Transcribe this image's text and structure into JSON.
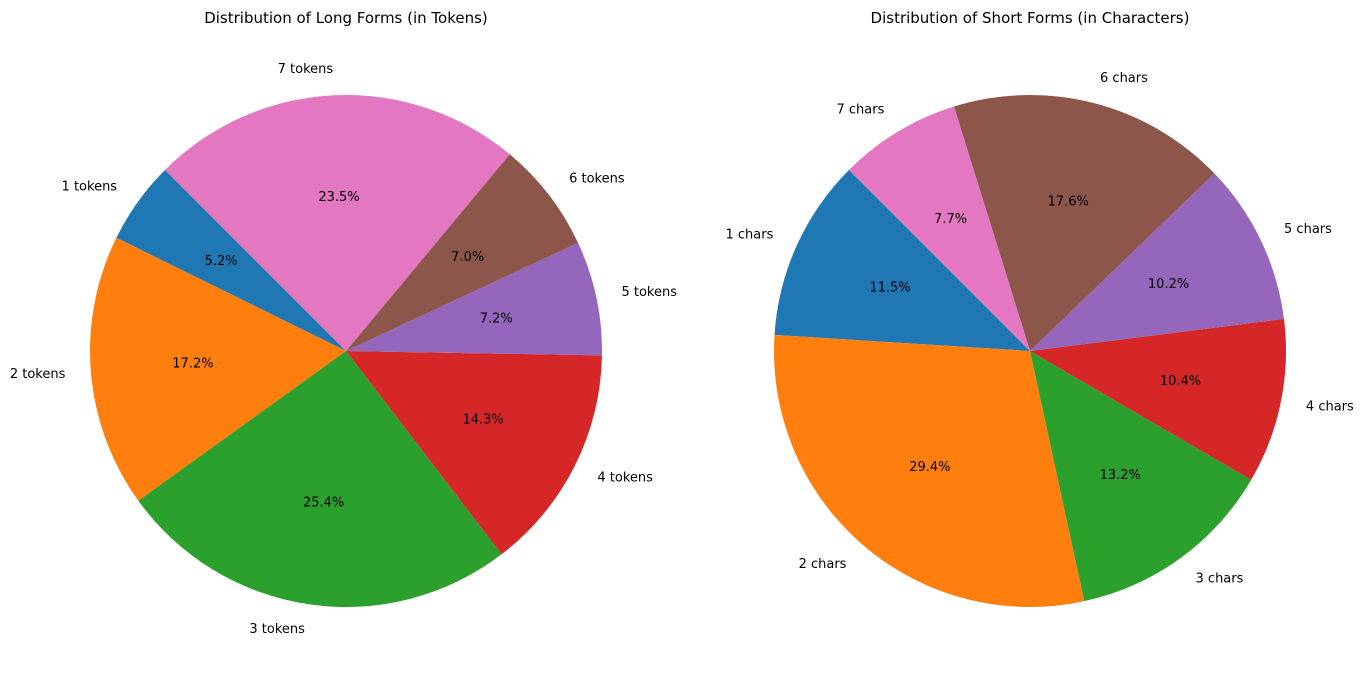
{
  "chart_data": [
    {
      "type": "pie",
      "title": "Distribution of Long Forms (in Tokens)",
      "start_angle_deg": 135,
      "direction": "counterclockwise",
      "categories": [
        "1 tokens",
        "2 tokens",
        "3 tokens",
        "4 tokens",
        "5 tokens",
        "6 tokens",
        "7 tokens"
      ],
      "values": [
        5.2,
        17.2,
        25.4,
        14.3,
        7.2,
        7.0,
        23.5
      ],
      "value_labels": [
        "5.2%",
        "17.2%",
        "25.4%",
        "14.3%",
        "7.2%",
        "7.0%",
        "23.5%"
      ],
      "colors": [
        "#1f77b4",
        "#ff7f0e",
        "#2ca02c",
        "#d62728",
        "#9467bd",
        "#8c564b",
        "#e377c2"
      ]
    },
    {
      "type": "pie",
      "title": "Distribution of Short Forms (in Characters)",
      "start_angle_deg": 135,
      "direction": "counterclockwise",
      "categories": [
        "1 chars",
        "2 chars",
        "3 chars",
        "4 chars",
        "5 chars",
        "6 chars",
        "7 chars"
      ],
      "values": [
        11.5,
        29.4,
        13.2,
        10.4,
        10.2,
        17.6,
        7.7
      ],
      "value_labels": [
        "11.5%",
        "29.4%",
        "13.2%",
        "10.4%",
        "10.2%",
        "17.6%",
        "7.7%"
      ],
      "colors": [
        "#1f77b4",
        "#ff7f0e",
        "#2ca02c",
        "#d62728",
        "#9467bd",
        "#8c564b",
        "#e377c2"
      ]
    }
  ]
}
